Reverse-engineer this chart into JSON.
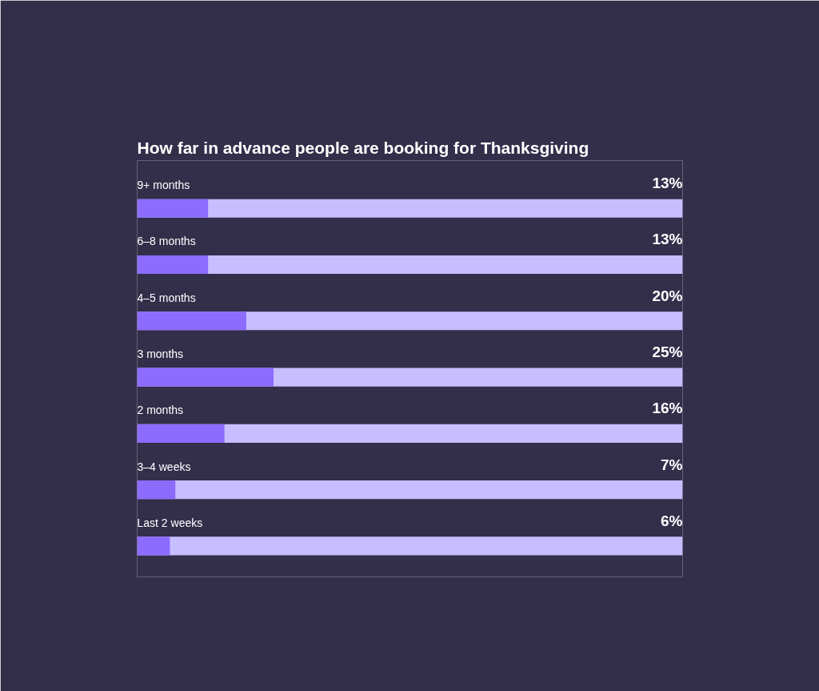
{
  "chart_data": {
    "type": "bar",
    "orientation": "horizontal",
    "title": "How far in advance people are booking for Thanksgiving",
    "categories": [
      "9+ months",
      "6–8 months",
      "4–5 months",
      "3 months",
      "2 months",
      "3–4 weeks",
      "Last 2 weeks"
    ],
    "values": [
      13,
      13,
      20,
      25,
      16,
      7,
      6
    ],
    "value_labels": [
      "13%",
      "13%",
      "20%",
      "25%",
      "16%",
      "7%",
      "6%"
    ],
    "color": "#8b6cfd",
    "bands": [
      {
        "axis": "x",
        "from": 0,
        "to": 100,
        "color": "#c8bdff"
      },
      {
        "axis": "x",
        "from": 0,
        "to": 100,
        "color": "#c8bdff"
      },
      {
        "axis": "x",
        "from": 0,
        "to": 100,
        "color": "#c8bdff"
      },
      {
        "axis": "x",
        "from": 0,
        "to": 100,
        "color": "#c8bdff"
      },
      {
        "axis": "x",
        "from": 0,
        "to": 100,
        "color": "#c8bdff"
      },
      {
        "axis": "x",
        "from": 0,
        "to": 100,
        "color": "#c8bdff"
      },
      {
        "axis": "x",
        "from": 0,
        "to": 100,
        "color": "#c8bdff"
      }
    ],
    "xlim": [
      0,
      100
    ],
    "grid": false,
    "tick_labels": false
  }
}
